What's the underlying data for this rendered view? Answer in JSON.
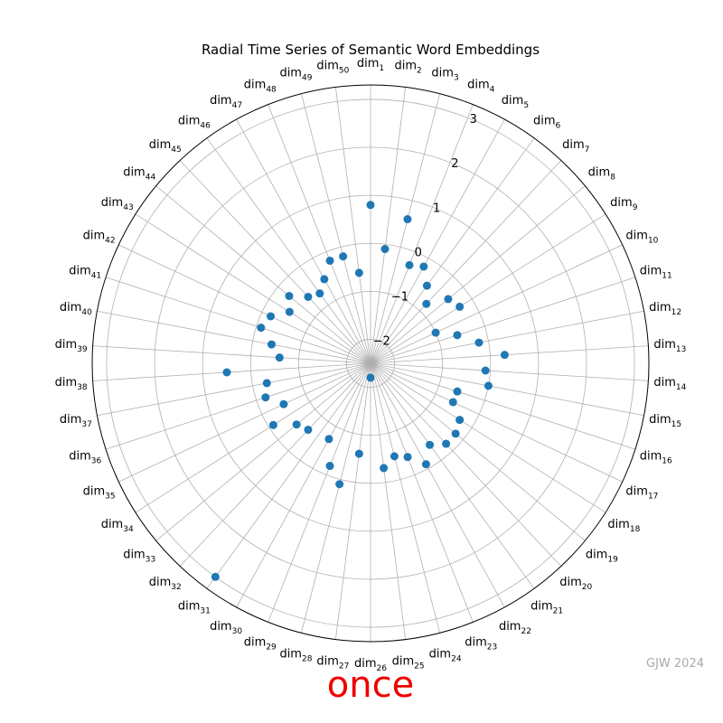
{
  "chart_data": {
    "type": "scatter",
    "projection": "polar",
    "title": "Radial Time Series of Semantic Word Embeddings",
    "axis_prefix": "dim",
    "categories": [
      "dim1",
      "dim2",
      "dim3",
      "dim4",
      "dim5",
      "dim6",
      "dim7",
      "dim8",
      "dim9",
      "dim10",
      "dim11",
      "dim12",
      "dim13",
      "dim14",
      "dim15",
      "dim16",
      "dim17",
      "dim18",
      "dim19",
      "dim20",
      "dim21",
      "dim22",
      "dim23",
      "dim24",
      "dim25",
      "dim26",
      "dim27",
      "dim28",
      "dim29",
      "dim30",
      "dim31",
      "dim32",
      "dim33",
      "dim34",
      "dim35",
      "dim36",
      "dim37",
      "dim38",
      "dim39",
      "dim40",
      "dim41",
      "dim42",
      "dim43",
      "dim44",
      "dim45",
      "dim46",
      "dim47",
      "dim48",
      "dim49",
      "dim50"
    ],
    "values": [
      0.8,
      -0.1,
      0.6,
      -0.3,
      -0.2,
      -0.5,
      -0.8,
      -0.4,
      -0.3,
      -1.0,
      -0.6,
      -0.2,
      0.3,
      -0.1,
      0.0,
      -0.6,
      -0.6,
      -0.3,
      -0.2,
      -0.2,
      -0.4,
      -0.1,
      -0.4,
      -0.5,
      -0.3,
      -2.2,
      -0.6,
      0.1,
      -0.2,
      -0.7,
      3.0,
      -0.6,
      -0.5,
      -0.1,
      -0.5,
      -0.2,
      -0.3,
      0.5,
      -0.6,
      -0.4,
      -0.1,
      -0.2,
      -0.5,
      -0.3,
      -0.6,
      -0.7,
      -0.5,
      -0.2,
      -0.2,
      -0.6
    ],
    "rlim": [
      -2.5,
      3.3
    ],
    "r_ticks": [
      "−2",
      "−1",
      "0",
      "1",
      "2",
      "3"
    ],
    "r_tick_values": [
      -2,
      -1,
      0,
      1,
      2,
      3
    ],
    "point_color": "#1f77b4",
    "grid": true,
    "direction": "clockwise",
    "zero_location": "top"
  },
  "overlay": {
    "word": "once",
    "word_color": "#ee0000",
    "watermark": "GJW 2024"
  }
}
